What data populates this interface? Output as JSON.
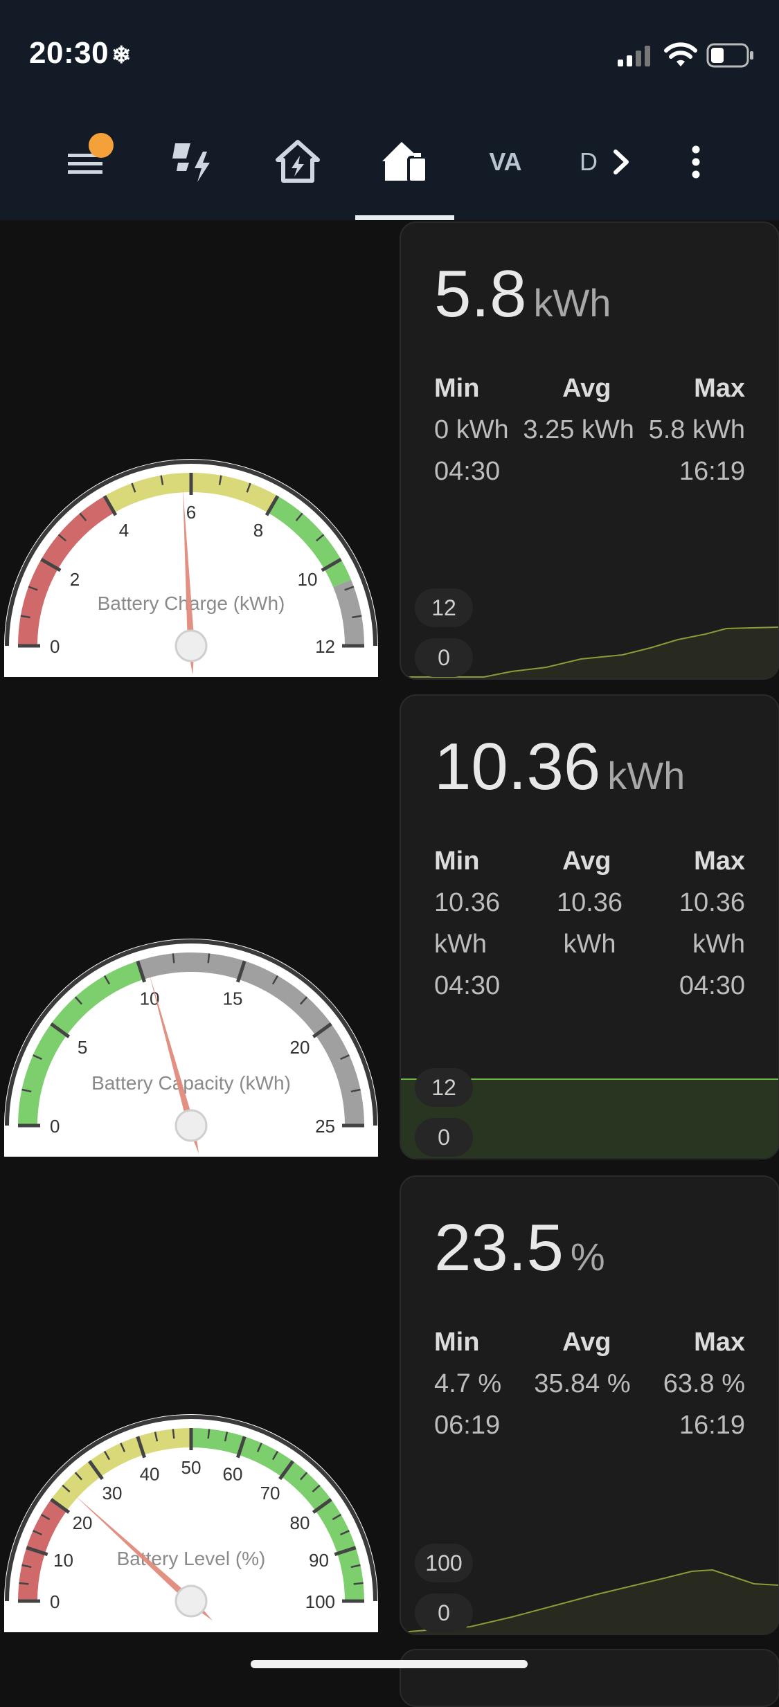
{
  "status_bar": {
    "time": "20:30",
    "time_icon": "snowflake-icon",
    "icons": [
      "signal-icon",
      "wifi-icon",
      "battery-icon"
    ]
  },
  "toolbar": {
    "tabs": [
      {
        "name": "menu",
        "icon": "menu-icon",
        "has_badge": true
      },
      {
        "name": "energy",
        "icon": "solar-bolt-icon"
      },
      {
        "name": "home-energy",
        "icon": "home-lightning-icon"
      },
      {
        "name": "home-battery",
        "icon": "home-battery-icon",
        "active": true
      },
      {
        "name": "va",
        "label": "VA"
      },
      {
        "name": "d",
        "label": "D"
      }
    ],
    "more_icon": "more-vertical-icon",
    "scroll_icon": "chevron-right-icon"
  },
  "cards": [
    {
      "gauge": {
        "title": "Battery Charge (kWh)",
        "min": 0,
        "max": 12,
        "value": 5.8,
        "ticks": [
          "0",
          "2",
          "4",
          "6",
          "8",
          "10",
          "12"
        ],
        "bands": [
          {
            "from": 0,
            "to": 4,
            "color": "#d06a6a"
          },
          {
            "from": 4,
            "to": 8,
            "color": "#d9d97a"
          },
          {
            "from": 8,
            "to": 10.5,
            "color": "#7dcf6e"
          },
          {
            "from": 10.5,
            "to": 12,
            "color": "#a0a0a0"
          }
        ]
      },
      "stat": {
        "value": "5.8",
        "unit": "kWh",
        "headers": [
          "Min",
          "Avg",
          "Max"
        ],
        "rows": [
          [
            "0 kWh",
            "3.25 kWh",
            "5.8 kWh"
          ],
          [
            "04:30",
            "",
            "16:19"
          ]
        ],
        "axis_top": "12",
        "axis_bottom": "0"
      }
    },
    {
      "gauge": {
        "title": "Battery Capacity (kWh)",
        "min": 0,
        "max": 25,
        "value": 10.36,
        "ticks": [
          "0",
          "5",
          "10",
          "15",
          "20",
          "25"
        ],
        "bands": [
          {
            "from": 0,
            "to": 10,
            "color": "#7dcf6e"
          },
          {
            "from": 10,
            "to": 25,
            "color": "#a0a0a0"
          }
        ]
      },
      "stat": {
        "value": "10.36",
        "unit": "kWh",
        "headers": [
          "Min",
          "Avg",
          "Max"
        ],
        "rows": [
          [
            "10.36",
            "10.36",
            "10.36"
          ],
          [
            "kWh",
            "kWh",
            "kWh"
          ],
          [
            "04:30",
            "",
            "04:30"
          ]
        ],
        "axis_top": "12",
        "axis_bottom": "0"
      }
    },
    {
      "gauge": {
        "title": "Battery Level (%)",
        "min": 0,
        "max": 100,
        "value": 23.5,
        "ticks": [
          "0",
          "10",
          "20",
          "30",
          "40",
          "50",
          "60",
          "70",
          "80",
          "90",
          "100"
        ],
        "bands": [
          {
            "from": 0,
            "to": 20,
            "color": "#d06a6a"
          },
          {
            "from": 20,
            "to": 50,
            "color": "#d9d97a"
          },
          {
            "from": 50,
            "to": 100,
            "color": "#7dcf6e"
          }
        ]
      },
      "stat": {
        "value": "23.5",
        "unit": "%",
        "headers": [
          "Min",
          "Avg",
          "Max"
        ],
        "rows": [
          [
            "4.7 %",
            "35.84 %",
            "63.8 %"
          ],
          [
            "06:19",
            "",
            "16:19"
          ]
        ],
        "axis_top": "100",
        "axis_bottom": "0"
      }
    }
  ]
}
